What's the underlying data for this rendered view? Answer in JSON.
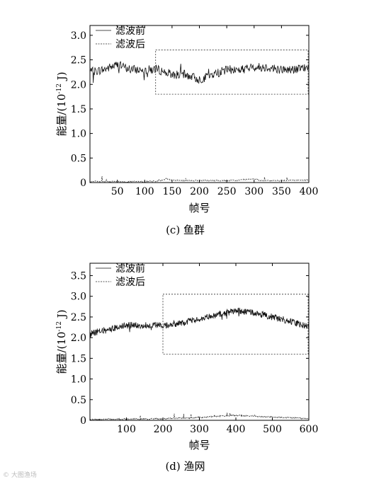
{
  "chart_data": [
    {
      "type": "line",
      "caption": "(c)  鱼群",
      "xlabel": "帧号",
      "ylabel_main": "能量/(10",
      "ylabel_exp": "-12",
      "ylabel_tail": " J)",
      "xlim": [
        0,
        400
      ],
      "ylim": [
        0,
        3.2
      ],
      "xticks": [
        50,
        100,
        150,
        200,
        250,
        300,
        350,
        400
      ],
      "yticks": [
        0,
        0.5,
        1.0,
        1.5,
        2.0,
        2.5,
        3.0
      ],
      "ytick_labels": [
        "0",
        "0.5",
        "1.0",
        "1.5",
        "2.0",
        "2.5",
        "3.0"
      ],
      "legend": [
        "滤波前",
        "滤波后"
      ],
      "highlight_box": {
        "x": [
          120,
          400
        ],
        "y": [
          1.8,
          2.7
        ]
      },
      "series": [
        {
          "name": "滤波前",
          "style": "solid",
          "x": [
            0,
            25,
            50,
            75,
            100,
            125,
            150,
            175,
            200,
            225,
            250,
            275,
            300,
            325,
            350,
            375,
            400
          ],
          "values": [
            2.25,
            2.3,
            2.4,
            2.3,
            2.3,
            2.3,
            2.2,
            2.2,
            2.1,
            2.2,
            2.3,
            2.3,
            2.35,
            2.35,
            2.3,
            2.3,
            2.35
          ]
        },
        {
          "name": "滤波后",
          "style": "dashed",
          "x": [
            0,
            50,
            100,
            125,
            140,
            150,
            175,
            200,
            250,
            275,
            300,
            310,
            350,
            400
          ],
          "values": [
            0.02,
            0.02,
            0.02,
            0.03,
            0.08,
            0.05,
            0.04,
            0.04,
            0.04,
            0.05,
            0.08,
            0.04,
            0.04,
            0.05
          ]
        }
      ]
    },
    {
      "type": "line",
      "caption": "(d)  渔网",
      "xlabel": "帧号",
      "ylabel_main": "能量/(10",
      "ylabel_exp": "-12",
      "ylabel_tail": " J)",
      "xlim": [
        0,
        600
      ],
      "ylim": [
        0,
        3.8
      ],
      "xticks": [
        100,
        200,
        300,
        400,
        500,
        600
      ],
      "yticks": [
        0,
        0.5,
        1.0,
        1.5,
        2.0,
        2.5,
        3.0,
        3.5
      ],
      "ytick_labels": [
        "0",
        "0.5",
        "1.0",
        "1.5",
        "2.0",
        "2.5",
        "3.0",
        "3.5"
      ],
      "legend": [
        "滤波前",
        "滤波后"
      ],
      "highlight_box": {
        "x": [
          200,
          600
        ],
        "y": [
          1.6,
          3.05
        ]
      },
      "series": [
        {
          "name": "滤波前",
          "style": "solid",
          "x": [
            0,
            50,
            100,
            150,
            200,
            250,
            300,
            350,
            400,
            450,
            500,
            550,
            600
          ],
          "values": [
            2.1,
            2.2,
            2.3,
            2.3,
            2.3,
            2.35,
            2.45,
            2.55,
            2.65,
            2.6,
            2.5,
            2.4,
            2.25
          ]
        },
        {
          "name": "滤波后",
          "style": "dashed",
          "x": [
            0,
            50,
            100,
            150,
            200,
            250,
            300,
            350,
            400,
            450,
            500,
            550,
            600
          ],
          "values": [
            0.02,
            0.03,
            0.03,
            0.03,
            0.04,
            0.05,
            0.07,
            0.1,
            0.12,
            0.1,
            0.08,
            0.06,
            0.04
          ]
        }
      ]
    }
  ]
}
